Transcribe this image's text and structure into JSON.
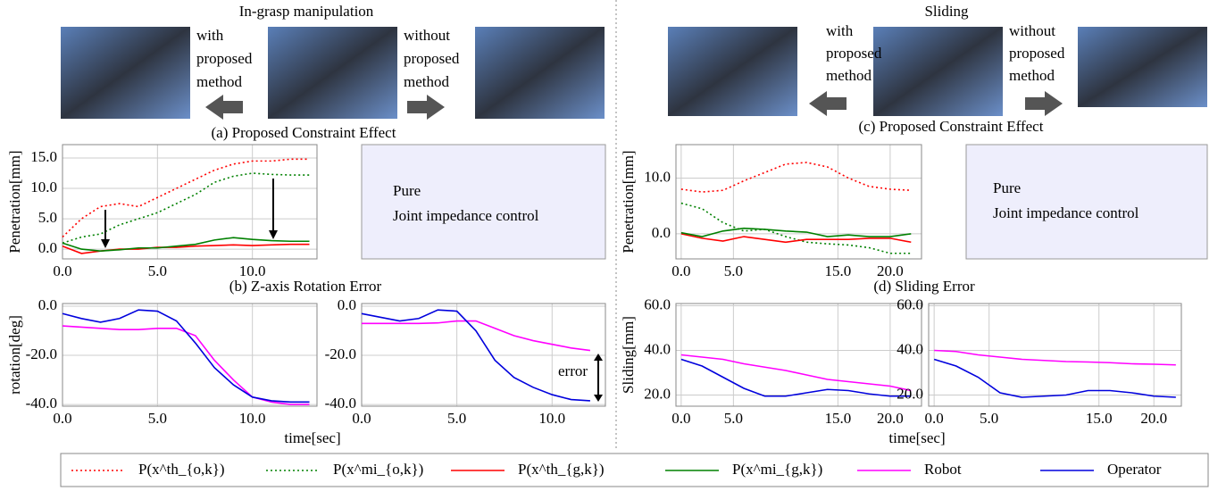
{
  "panels": {
    "left_title": "In-grasp manipulation",
    "right_title": "Sliding",
    "left_with": [
      "with",
      "proposed",
      "method"
    ],
    "left_without": [
      "without",
      "proposed",
      "method"
    ],
    "right_with": [
      "with",
      "proposed",
      "method"
    ],
    "right_without": [
      "without",
      "proposed",
      "method"
    ],
    "caption_a": "(a) Proposed Constraint Effect",
    "caption_b": "(b) Z-axis Rotation Error",
    "caption_c": "(c) Proposed Constraint Effect",
    "caption_d": "(d) Sliding Error",
    "left_placeholder": [
      "Pure",
      "Joint impedance control"
    ],
    "right_placeholder": [
      "Pure",
      "Joint impedance control"
    ],
    "error_label": "error"
  },
  "chart_data": [
    {
      "type": "line",
      "y_label": "Penetration[mm]",
      "xlim": [
        0,
        13.4
      ],
      "ylim": [
        -1.6,
        17.2
      ],
      "xticks": [
        {
          "value": 0,
          "label": "0.0"
        },
        {
          "value": 5,
          "label": "5.0"
        },
        {
          "value": 10,
          "label": "10.0"
        }
      ],
      "yticks": [
        {
          "value": 0,
          "label": "0.0"
        },
        {
          "value": 5,
          "label": "5.0"
        },
        {
          "value": 10,
          "label": "10.0"
        },
        {
          "value": 15,
          "label": "15.0"
        }
      ],
      "grid": true,
      "x": [
        0,
        1,
        2,
        3,
        4,
        5,
        6,
        7,
        8,
        9,
        10,
        11,
        12,
        13
      ],
      "series": [
        {
          "name": "P(x^th_{o,k})",
          "color": "#ff0000",
          "style": "dotted",
          "values": [
            2,
            5,
            7,
            7.5,
            7,
            8.5,
            10,
            11.5,
            13,
            14,
            14.5,
            14.5,
            14.8,
            14.8
          ]
        },
        {
          "name": "P(x^mi_{o,k})",
          "color": "#008000",
          "style": "dotted",
          "values": [
            1,
            2,
            2.5,
            4,
            5,
            6,
            7.5,
            9,
            11,
            12,
            12.5,
            12.3,
            12.2,
            12.2
          ]
        },
        {
          "name": "P(x^th_{g,k})",
          "color": "#ff0000",
          "style": "solid",
          "values": [
            0.5,
            -0.7,
            -0.3,
            0,
            0,
            0.3,
            0.3,
            0.5,
            0.6,
            0.7,
            0.6,
            0.7,
            0.8,
            0.8
          ]
        },
        {
          "name": "P(x^mi_{g,k})",
          "color": "#008000",
          "style": "solid",
          "values": [
            1,
            0,
            -0.3,
            -0.1,
            0.2,
            0.2,
            0.5,
            0.8,
            1.5,
            1.9,
            1.6,
            1.4,
            1.3,
            1.3
          ]
        }
      ]
    },
    {
      "type": "line",
      "y_label": "Penetration[mm]",
      "xlim": [
        -0.5,
        23
      ],
      "ylim": [
        -4.5,
        16
      ],
      "xticks": [
        {
          "value": 0,
          "label": "0.0"
        },
        {
          "value": 5,
          "label": "5.0"
        },
        {
          "value": 15,
          "label": "15.0"
        },
        {
          "value": 20,
          "label": "20.0"
        }
      ],
      "yticks": [
        {
          "value": 0,
          "label": "0.0"
        },
        {
          "value": 10,
          "label": "10.0"
        }
      ],
      "grid": true,
      "x": [
        0,
        2,
        4,
        6,
        8,
        10,
        12,
        14,
        16,
        18,
        20,
        22
      ],
      "series": [
        {
          "name": "P(x^th_{o,k})",
          "color": "#ff0000",
          "style": "dotted",
          "values": [
            8,
            7.5,
            7.8,
            9.5,
            11,
            12.5,
            12.8,
            12,
            10,
            8.5,
            8,
            7.8
          ]
        },
        {
          "name": "P(x^mi_{o,k})",
          "color": "#008000",
          "style": "dotted",
          "values": [
            5.5,
            4.5,
            2,
            0.5,
            0.8,
            -0.5,
            -1.5,
            -1.8,
            -2,
            -2.5,
            -3.5,
            -3.5
          ]
        },
        {
          "name": "P(x^th_{g,k})",
          "color": "#ff0000",
          "style": "solid",
          "values": [
            0,
            -0.8,
            -1.3,
            -0.5,
            -1,
            -1.5,
            -1,
            -1,
            -1,
            -0.8,
            -0.8,
            -1.5
          ]
        },
        {
          "name": "P(x^mi_{g,k})",
          "color": "#008000",
          "style": "solid",
          "values": [
            0.2,
            -0.5,
            0.5,
            1,
            0.8,
            0.5,
            0.3,
            -0.5,
            -0.2,
            -0.5,
            -0.5,
            0
          ]
        }
      ]
    },
    {
      "type": "line",
      "y_label": "rotation[deg]",
      "x_label": "time[sec]",
      "xlim": [
        0,
        13.4
      ],
      "ylim": [
        -40.7,
        1.1
      ],
      "xticks": [
        {
          "value": 0,
          "label": "0.0"
        },
        {
          "value": 5,
          "label": "5.0"
        },
        {
          "value": 10,
          "label": "10.0"
        }
      ],
      "yticks": [
        {
          "value": -40,
          "label": "-40.0"
        },
        {
          "value": -20,
          "label": "-20.0"
        },
        {
          "value": 0,
          "label": "0.0"
        }
      ],
      "grid": true,
      "x": [
        0,
        1,
        2,
        3,
        4,
        5,
        6,
        7,
        8,
        9,
        10,
        11,
        12,
        13
      ],
      "series": [
        {
          "name": "Robot",
          "color": "#ff00ff",
          "style": "solid",
          "values": [
            -8,
            -8.5,
            -9,
            -9.5,
            -9.5,
            -9,
            -9,
            -12,
            -22,
            -30,
            -37,
            -39,
            -40,
            -40
          ]
        },
        {
          "name": "Operator",
          "color": "#0000dd",
          "style": "solid",
          "values": [
            -3,
            -5,
            -6.5,
            -5,
            -1.5,
            -2,
            -6,
            -15,
            -25,
            -32,
            -37,
            -38.5,
            -39,
            -39
          ]
        }
      ]
    },
    {
      "type": "line",
      "xlim": [
        0,
        12.8
      ],
      "ylim": [
        -40.7,
        1.1
      ],
      "xticks": [
        {
          "value": 0,
          "label": "0.0"
        },
        {
          "value": 5,
          "label": "5.0"
        },
        {
          "value": 10,
          "label": "10.0"
        }
      ],
      "yticks": [
        {
          "value": -40,
          "label": "-40.0"
        },
        {
          "value": -20,
          "label": "-20.0"
        },
        {
          "value": 0,
          "label": "0.0"
        }
      ],
      "grid": true,
      "x": [
        0,
        1,
        2,
        3,
        4,
        5,
        6,
        7,
        8,
        9,
        10,
        11,
        12
      ],
      "series": [
        {
          "name": "Robot",
          "color": "#ff00ff",
          "style": "solid",
          "values": [
            -7,
            -7,
            -7,
            -7,
            -6.8,
            -6,
            -6,
            -9,
            -12,
            -14,
            -15.5,
            -17,
            -18
          ]
        },
        {
          "name": "Operator",
          "color": "#0000dd",
          "style": "solid",
          "values": [
            -3,
            -4.5,
            -6,
            -5,
            -1.5,
            -2,
            -10,
            -22,
            -29,
            -33,
            -36,
            -38,
            -38.5
          ]
        }
      ]
    },
    {
      "type": "line",
      "y_label": "Sliding[mm]",
      "x_label": "time[sec]",
      "xlim": [
        -0.5,
        23
      ],
      "ylim": [
        15,
        61
      ],
      "xticks": [
        {
          "value": 0,
          "label": "0.0"
        },
        {
          "value": 5,
          "label": "5.0"
        },
        {
          "value": 15,
          "label": "15.0"
        },
        {
          "value": 20,
          "label": "20.0"
        }
      ],
      "yticks": [
        {
          "value": 20,
          "label": "20.0"
        },
        {
          "value": 40,
          "label": "40.0"
        },
        {
          "value": 60,
          "label": "60.0"
        }
      ],
      "grid": true,
      "x": [
        0,
        2,
        4,
        6,
        8,
        10,
        12,
        14,
        16,
        18,
        20,
        22
      ],
      "series": [
        {
          "name": "Robot",
          "color": "#ff00ff",
          "style": "solid",
          "values": [
            38,
            37,
            36,
            34,
            32.5,
            31,
            29,
            27,
            26,
            25,
            24,
            22
          ]
        },
        {
          "name": "Operator",
          "color": "#0000dd",
          "style": "solid",
          "values": [
            36,
            33,
            28,
            23,
            19.5,
            19.5,
            21,
            22.5,
            22,
            20.5,
            19.5,
            19.5
          ]
        }
      ]
    },
    {
      "type": "line",
      "xlim": [
        -0.5,
        22.5
      ],
      "ylim": [
        15,
        61
      ],
      "xticks": [
        {
          "value": 0,
          "label": "0.0"
        },
        {
          "value": 5,
          "label": "5.0"
        },
        {
          "value": 15,
          "label": "15.0"
        },
        {
          "value": 20,
          "label": "20.0"
        }
      ],
      "yticks": [
        {
          "value": 20,
          "label": "20.0"
        },
        {
          "value": 40,
          "label": "40.0"
        },
        {
          "value": 60,
          "label": "60.0"
        }
      ],
      "grid": true,
      "x": [
        0,
        2,
        4,
        6,
        8,
        10,
        12,
        14,
        16,
        18,
        20,
        22
      ],
      "series": [
        {
          "name": "Robot",
          "color": "#ff00ff",
          "style": "solid",
          "values": [
            40,
            39.5,
            38,
            37,
            36,
            35.5,
            35,
            34.8,
            34.5,
            34,
            33.8,
            33.5
          ]
        },
        {
          "name": "Operator",
          "color": "#0000dd",
          "style": "solid",
          "values": [
            36,
            33,
            28,
            21,
            19,
            19.5,
            20,
            22,
            22,
            21,
            19.5,
            19
          ]
        }
      ]
    }
  ]
}
